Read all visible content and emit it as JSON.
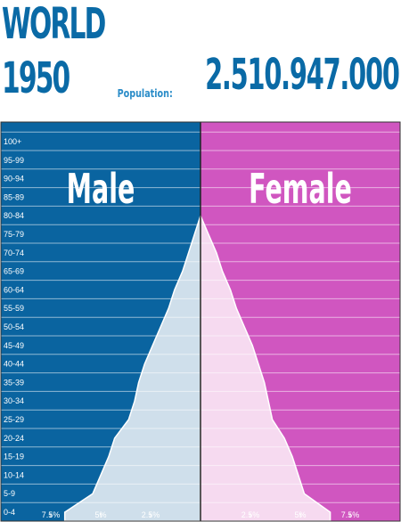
{
  "header": {
    "region": "WORLD",
    "year": "1950",
    "population_label": "Population:",
    "population_value": "2.510.947.000"
  },
  "colors": {
    "male": "#0a64a0",
    "female": "#d056c0",
    "male_fill": "#cfdfeb",
    "female_fill": "#f6daf0",
    "title": "#0a6aa6"
  },
  "chart_data": {
    "type": "area",
    "orientation": "horizontal",
    "title": "",
    "xlabel": "",
    "ylabel": "",
    "categories": [
      "0-4",
      "5-9",
      "10-14",
      "15-19",
      "20-24",
      "25-29",
      "30-34",
      "35-39",
      "40-44",
      "45-49",
      "50-54",
      "55-59",
      "60-64",
      "65-69",
      "70-74",
      "75-79",
      "80-84",
      "85-89",
      "90-94",
      "95-99",
      "100+"
    ],
    "xlim": [
      0,
      10
    ],
    "ticks": [
      {
        "value": 7.5,
        "label": "7.5%"
      },
      {
        "value": 5,
        "label": "5%"
      },
      {
        "value": 2.5,
        "label": "2.5%"
      }
    ],
    "side_labels": {
      "male": "Male",
      "female": "Female"
    },
    "series": [
      {
        "name": "Male",
        "values": [
          6.8,
          5.4,
          5.0,
          4.6,
          4.3,
          3.6,
          3.3,
          3.1,
          2.8,
          2.4,
          2.0,
          1.6,
          1.3,
          0.9,
          0.6,
          0.3,
          0.0,
          0.0,
          0.0,
          0.0,
          0.0
        ]
      },
      {
        "name": "Female",
        "values": [
          6.5,
          5.2,
          4.9,
          4.6,
          4.2,
          3.6,
          3.4,
          3.2,
          2.9,
          2.6,
          2.2,
          1.8,
          1.5,
          1.1,
          0.8,
          0.4,
          0.0,
          0.0,
          0.0,
          0.0,
          0.0
        ]
      }
    ]
  }
}
